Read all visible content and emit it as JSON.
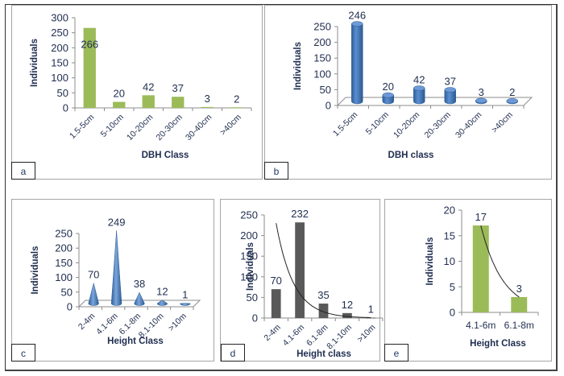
{
  "chart_data": [
    {
      "panel": "a",
      "type": "bar",
      "title": "",
      "xlabel": "DBH Class",
      "ylabel": "Individuals",
      "categories": [
        "1.5-5cm",
        "5-10cm",
        "10-20cm",
        "20-30cm",
        "30-40cm",
        ">40cm"
      ],
      "values": [
        266,
        20,
        42,
        37,
        3,
        2
      ],
      "data_labels": [
        "266",
        "20",
        "42",
        "37",
        "3",
        "2"
      ],
      "ylim": [
        0,
        300
      ],
      "yticks": [
        0,
        50,
        100,
        150,
        200,
        250,
        300
      ],
      "color": "#9bbb59",
      "grid": false,
      "legend": "none"
    },
    {
      "panel": "b",
      "type": "bar",
      "style": "3d-cylinder",
      "title": "",
      "xlabel": "DBH class",
      "ylabel": "Individuals",
      "categories": [
        "1.5-5cm",
        "5-10cm",
        "10-20cm",
        "20-30cm",
        "30-40cm",
        ">40cm"
      ],
      "values": [
        246,
        20,
        42,
        37,
        3,
        2
      ],
      "data_labels": [
        "246",
        "20",
        "42",
        "37",
        "3",
        "2"
      ],
      "ylim": [
        0,
        250
      ],
      "yticks": [
        0,
        50,
        100,
        150,
        200,
        250
      ],
      "color": "#4f81bd",
      "grid": false,
      "legend": "none"
    },
    {
      "panel": "c",
      "type": "bar",
      "style": "3d-cone",
      "title": "",
      "xlabel": "Height Class",
      "ylabel": "Individuals",
      "categories": [
        "2-4m",
        "4.1-6m",
        "6.1-8m",
        "8.1-10m",
        ">10m"
      ],
      "values": [
        70,
        249,
        38,
        12,
        1
      ],
      "data_labels": [
        "70",
        "249",
        "38",
        "12",
        "1"
      ],
      "ylim": [
        0,
        250
      ],
      "yticks": [
        0,
        50,
        100,
        150,
        200,
        250
      ],
      "color": "#4f81bd",
      "grid": false,
      "legend": "none"
    },
    {
      "panel": "d",
      "type": "bar",
      "title": "",
      "xlabel": "Height class",
      "ylabel": "Individuals",
      "categories": [
        "2-4m",
        "4.1-6m",
        "6.1-8m",
        "8.1-10m",
        ">10m"
      ],
      "values": [
        70,
        232,
        35,
        12,
        1
      ],
      "data_labels": [
        "70",
        "232",
        "35",
        "12",
        "1"
      ],
      "ylim": [
        0,
        250
      ],
      "yticks": [
        0,
        50,
        100,
        150,
        200,
        250
      ],
      "color": "#595959",
      "trendline": {
        "type": "exponential",
        "points": [
          [
            1,
            230
          ],
          [
            2,
            90
          ],
          [
            3,
            30
          ],
          [
            4,
            8
          ],
          [
            5,
            1
          ]
        ]
      },
      "grid": false,
      "legend": "none"
    },
    {
      "panel": "e",
      "type": "bar",
      "title": "",
      "xlabel": "Height Class",
      "ylabel": "Individuals",
      "categories": [
        "4.1-6m",
        "6.1-8m"
      ],
      "values": [
        17,
        3
      ],
      "data_labels": [
        "17",
        "3"
      ],
      "ylim": [
        0,
        20
      ],
      "yticks": [
        0,
        5,
        10,
        15,
        20
      ],
      "color": "#9bbb59",
      "trendline": {
        "type": "exponential",
        "points": [
          [
            1,
            17
          ],
          [
            2,
            3
          ]
        ]
      },
      "grid": false,
      "legend": "none"
    }
  ]
}
